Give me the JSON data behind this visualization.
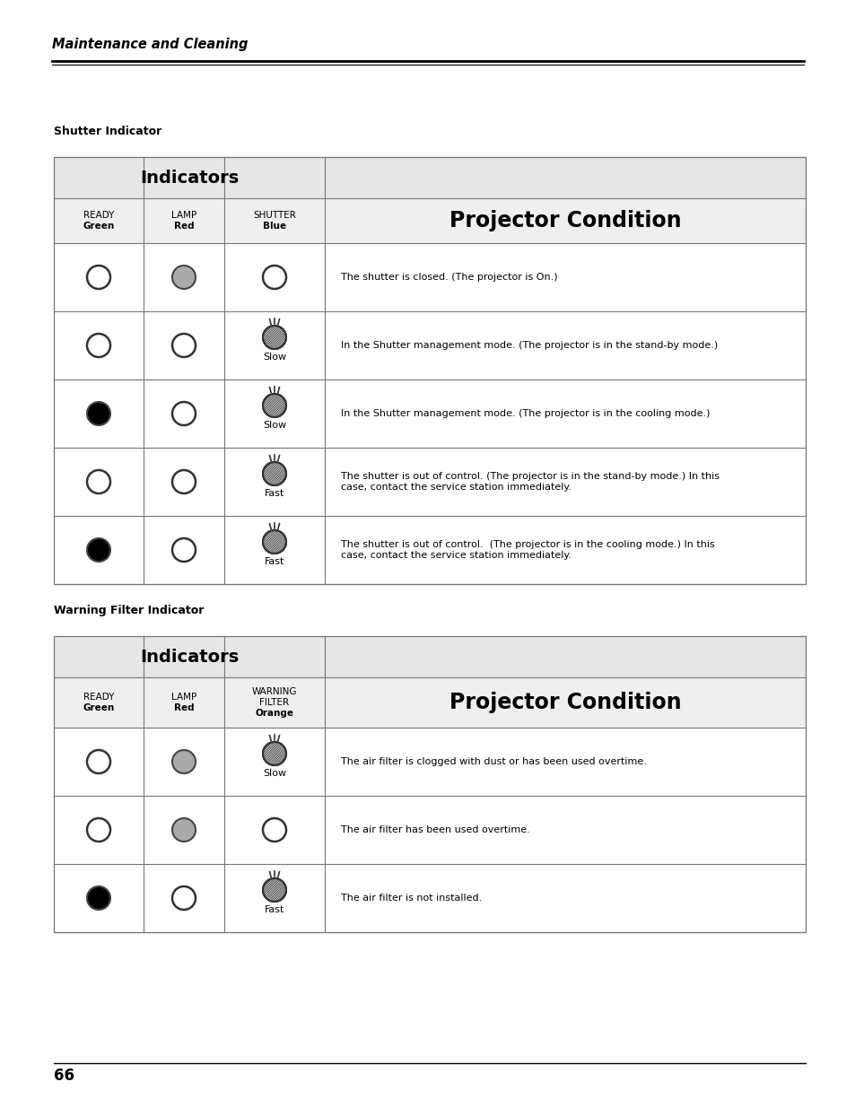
{
  "page_title": "Maintenance and Cleaning",
  "page_number": "66",
  "section1_title": "Shutter Indicator",
  "section2_title": "Warning Filter Indicator",
  "ind_header": "Indicators",
  "proj_header": "Projector Condition",
  "shutter_rows": [
    {
      "ready": "off",
      "lamp": "gray",
      "shutter": "off",
      "text": "The shutter is closed. (The projector is On.)"
    },
    {
      "ready": "off",
      "lamp": "off",
      "shutter": "blink_slow",
      "text": "In the Shutter management mode. (The projector is in the stand-by mode.)"
    },
    {
      "ready": "on",
      "lamp": "off",
      "shutter": "blink_slow",
      "text": "In the Shutter management mode. (The projector is in the cooling mode.)"
    },
    {
      "ready": "off",
      "lamp": "off",
      "shutter": "blink_fast",
      "text": "The shutter is out of control. (The projector is in the stand-by mode.) In this\ncase, contact the service station immediately."
    },
    {
      "ready": "on",
      "lamp": "off",
      "shutter": "blink_fast",
      "text": "The shutter is out of control.  (The projector is in the cooling mode.) In this\ncase, contact the service station immediately."
    }
  ],
  "filter_rows": [
    {
      "ready": "off",
      "lamp": "gray",
      "filter": "blink_slow",
      "text": "The air filter is clogged with dust or has been used overtime."
    },
    {
      "ready": "off",
      "lamp": "gray",
      "filter": "off",
      "text": "The air filter has been used overtime."
    },
    {
      "ready": "on",
      "lamp": "off",
      "filter": "blink_fast",
      "text": "The air filter is not installed."
    }
  ],
  "bg_color": "#ffffff",
  "header_bg": "#e6e6e6",
  "subheader_bg": "#efefef",
  "border_color": "#777777"
}
